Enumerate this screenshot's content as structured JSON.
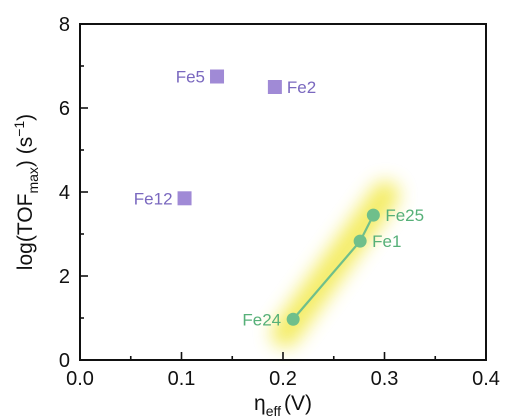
{
  "chart_data": {
    "type": "scatter",
    "xlabel": {
      "main": "η",
      "sub": "eff",
      "suffix": "(V)"
    },
    "ylabel": {
      "prefix": "log(TOF",
      "sub": "max",
      "middle": ") (s",
      "sup": "−1",
      "suffix": ")"
    },
    "xlim": [
      0.0,
      0.4
    ],
    "ylim": [
      0,
      8
    ],
    "x_ticks": [
      "0.0",
      "0.1",
      "0.2",
      "0.3",
      "0.4"
    ],
    "y_ticks": [
      "0",
      "2",
      "4",
      "6",
      "8"
    ],
    "grid": false,
    "legend": "none",
    "series": [
      {
        "marker": "square",
        "color": "#a08ad6",
        "label_color": "#7a68bf",
        "connected": false,
        "points": [
          {
            "label": "Fe5",
            "x": 0.135,
            "y": 6.75
          },
          {
            "label": "Fe2",
            "x": 0.192,
            "y": 6.5
          },
          {
            "label": "Fe12",
            "x": 0.103,
            "y": 3.85
          }
        ]
      },
      {
        "marker": "circle",
        "color": "#6fbf8b",
        "label_color": "#56b078",
        "connected": true,
        "highlight_color": "#f2e94a",
        "points": [
          {
            "label": "Fe24",
            "x": 0.21,
            "y": 0.97
          },
          {
            "label": "Fe1",
            "x": 0.276,
            "y": 2.83
          },
          {
            "label": "Fe25",
            "x": 0.289,
            "y": 3.45
          }
        ]
      }
    ]
  }
}
